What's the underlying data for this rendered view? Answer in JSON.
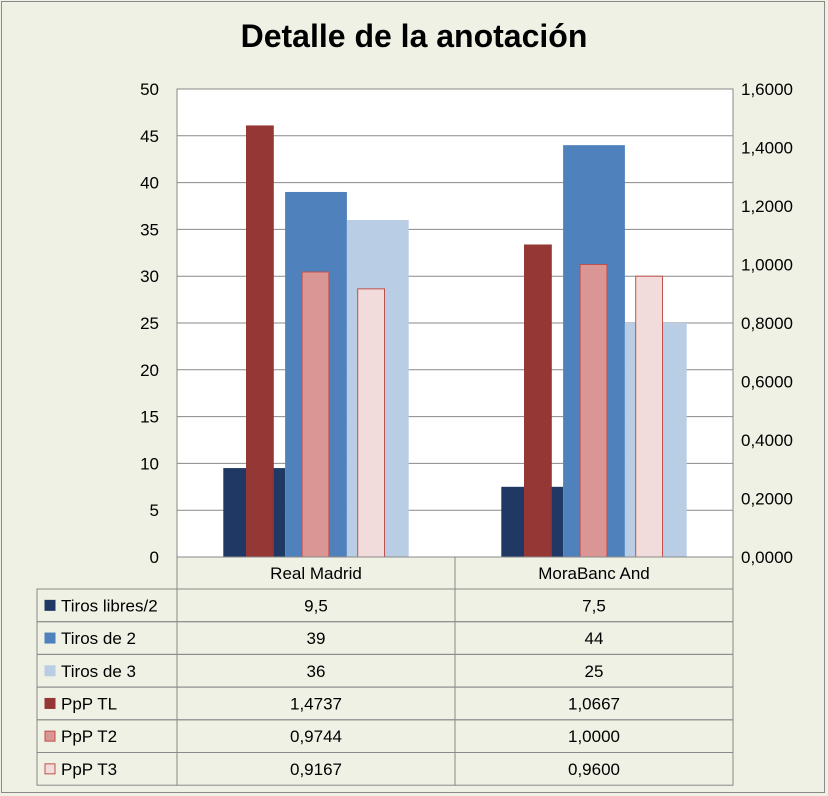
{
  "chart_data": {
    "type": "bar",
    "title": "Detalle de la anotación",
    "categories": [
      "Real Madrid",
      "MoraBanc And"
    ],
    "y_left": {
      "min": 0,
      "max": 50,
      "step": 5,
      "ticks": [
        "0",
        "5",
        "10",
        "15",
        "20",
        "25",
        "30",
        "35",
        "40",
        "45",
        "50"
      ]
    },
    "y_right": {
      "min": 0,
      "max": 1.6,
      "step": 0.2,
      "ticks": [
        "0,0000",
        "0,2000",
        "0,4000",
        "0,6000",
        "0,8000",
        "1,0000",
        "1,2000",
        "1,4000",
        "1,6000"
      ]
    },
    "grid": "horizontal",
    "series": [
      {
        "name": "Tiros libres/2",
        "axis": "left",
        "values": [
          9.5,
          7.5
        ],
        "labels": [
          "9,5",
          "7,5"
        ],
        "color": "#1f3864",
        "border": "#1f3864"
      },
      {
        "name": "Tiros de 2",
        "axis": "left",
        "values": [
          39,
          44
        ],
        "labels": [
          "39",
          "44"
        ],
        "color": "#4f81bd",
        "border": "#4f81bd"
      },
      {
        "name": "Tiros de 3",
        "axis": "left",
        "values": [
          36,
          25
        ],
        "labels": [
          "36",
          "25"
        ],
        "color": "#b9cde5",
        "border": "#b9cde5"
      },
      {
        "name": "PpP TL",
        "axis": "right",
        "values": [
          1.4737,
          1.0667
        ],
        "labels": [
          "1,4737",
          "1,0667"
        ],
        "color": "#953735",
        "border": "#953735"
      },
      {
        "name": "PpP T2",
        "axis": "right",
        "values": [
          0.9744,
          1.0
        ],
        "labels": [
          "0,9744",
          "1,0000"
        ],
        "color": "#d99694",
        "border": "#c0504d"
      },
      {
        "name": "PpP T3",
        "axis": "right",
        "values": [
          0.9167,
          0.96
        ],
        "labels": [
          "0,9167",
          "0,9600"
        ],
        "color": "#f2dcdb",
        "border": "#c0504d"
      }
    ]
  }
}
